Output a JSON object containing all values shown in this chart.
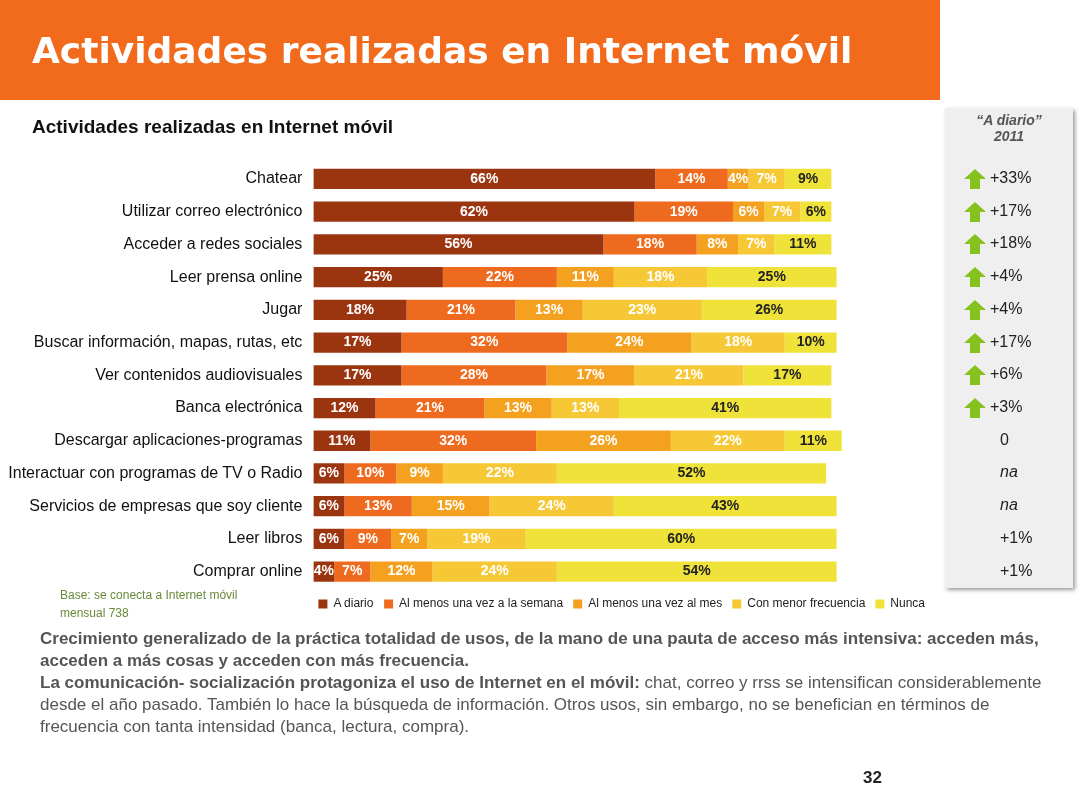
{
  "chart_data": {
    "type": "bar",
    "orientation": "horizontal",
    "stacked": true,
    "legend": "bottom",
    "grid": false,
    "tick_labels": "y",
    "title": "Actividades realizadas en Internet móvil",
    "subtitle": "Actividades realizadas en Internet móvil",
    "categories": [
      "Chatear",
      "Utilizar correo electrónico",
      "Acceder a redes sociales",
      "Leer prensa online",
      "Jugar",
      "Buscar información, mapas, rutas, etc",
      "Ver contenidos audiovisuales",
      "Banca electrónica",
      "Descargar aplicaciones-programas",
      "Interactuar con programas de TV o Radio",
      "Servicios de empresas que soy cliente",
      "Leer libros",
      "Comprar online"
    ],
    "series": [
      {
        "name": "A diario",
        "color": "#9b3510",
        "values": [
          66,
          62,
          56,
          25,
          18,
          17,
          17,
          12,
          11,
          6,
          6,
          6,
          4
        ],
        "value_labels": [
          "66%",
          "62%",
          "56%",
          "25%",
          "18%",
          "17%",
          "17%",
          "12%",
          "11%",
          "6%",
          "6%",
          "6%",
          "4%"
        ]
      },
      {
        "name": "Al menos una vez a la semana",
        "color": "#ee6a1e",
        "values": [
          14,
          19,
          18,
          22,
          21,
          32,
          28,
          21,
          32,
          10,
          13,
          9,
          7
        ],
        "value_labels": [
          "14%",
          "19%",
          "18%",
          "22%",
          "21%",
          "32%",
          "28%",
          "21%",
          "32%",
          "10%",
          "13%",
          "9%",
          "7%"
        ]
      },
      {
        "name": "Al menos una vez al mes",
        "color": "#f4a11f",
        "values": [
          4,
          6,
          8,
          11,
          13,
          24,
          17,
          13,
          26,
          9,
          15,
          7,
          12
        ],
        "value_labels": [
          "4%",
          "6%",
          "8%",
          "11%",
          "13%",
          "24%",
          "17%",
          "13%",
          "26%",
          "9%",
          "15%",
          "7%",
          "12%"
        ]
      },
      {
        "name": "Con menor frecuencia",
        "color": "#f6c835",
        "values": [
          7,
          7,
          7,
          18,
          23,
          18,
          21,
          13,
          22,
          22,
          24,
          19,
          24
        ],
        "value_labels": [
          "7%",
          "7%",
          "7%",
          "18%",
          "23%",
          "18%",
          "21%",
          "13%",
          "22%",
          "22%",
          "24%",
          "19%",
          "24%"
        ]
      },
      {
        "name": "Nunca",
        "color": "#efe33a",
        "values": [
          9,
          6,
          11,
          25,
          26,
          10,
          17,
          41,
          11,
          52,
          43,
          60,
          54
        ],
        "value_labels": [
          "9%",
          "6%",
          "11%",
          "25%",
          "26%",
          "10%",
          "17%",
          "41%",
          "11%",
          "52%",
          "43%",
          "60%",
          "54%"
        ]
      }
    ],
    "annotations": [
      "“A diario” 2011",
      "+33%",
      "+17%",
      "+18%",
      "+4%",
      "+4%",
      "+17%",
      "+6%",
      "+3%",
      "0",
      "na",
      "na",
      "+1%",
      "+1%",
      "Base: se conecta a Internet móvil mensual 738",
      "Crecimiento generalizado de la práctica totalidad de usos, de la mano de una pauta de acceso más intensiva: acceden más, acceden a más cosas y acceden con más frecuencia.",
      "La comunicación- socialización protagoniza el uso de Internet en el móvil:",
      "chat, correo y rrss se intensifican considerablemente desde el año pasado. También lo hace la búsqueda de información. Otros usos, sin embargo, no se benefician en términos de frecuencia con tanta intensidad (banca, lectura, compra).",
      "32"
    ]
  }
}
